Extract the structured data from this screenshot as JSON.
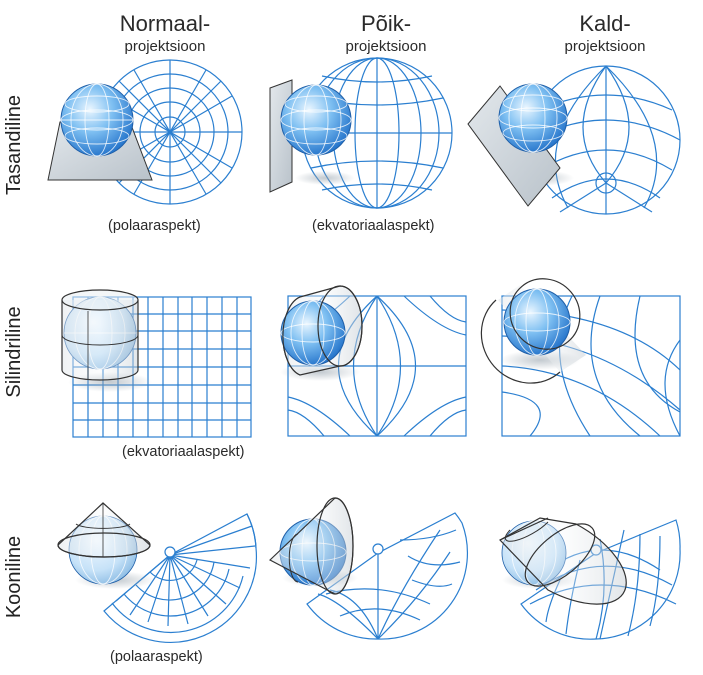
{
  "columns": [
    {
      "main": "Normaal-",
      "sub": "projektsioon"
    },
    {
      "main": "Põik-",
      "sub": "projektsioon"
    },
    {
      "main": "Kald-",
      "sub": "projektsioon"
    }
  ],
  "rows": [
    {
      "label": "Tasandiline"
    },
    {
      "label": "Silindriline"
    },
    {
      "label": "Kooniline"
    }
  ],
  "aspects": {
    "planar_normal": "(polaaraspekt)",
    "planar_transverse": "(ekvatoriaalaspekt)",
    "cylindrical_normal": "(ekvatoriaalaspekt)",
    "conic_normal": "(polaaraspekt)"
  },
  "colors": {
    "grid": "#2b7fd0",
    "globe_light": "#d9eefc",
    "globe_dark": "#1f6fc8",
    "surface": "#cfd6dc",
    "outline": "#333333"
  }
}
